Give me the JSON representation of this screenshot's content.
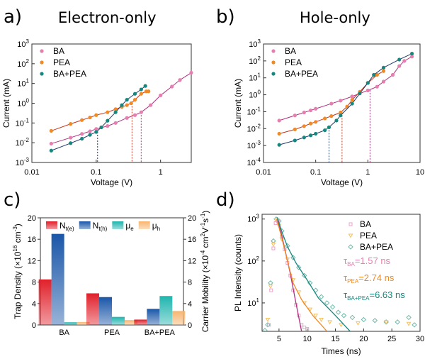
{
  "colors": {
    "BA": "#e57fb0",
    "PEA": "#f08a24",
    "BA+PEA": "#16877f",
    "fitBA": "#b0307f",
    "fitPEA": "#c8331c",
    "fitMix": "#1f3a6a",
    "Nte": "#e0202a",
    "Nth": "#1a56a8",
    "mue": "#1fb5ae",
    "muh": "#f7b570",
    "tauBA": "#e57fb0",
    "tauPEA": "#f08a24",
    "tauMix": "#16877f"
  },
  "chart_data": [
    {
      "panel": "a)",
      "title": "Electron-only",
      "type": "scatter",
      "xlabel": "Voltage (V)",
      "ylabel": "Current (mA)",
      "xscale": "log",
      "yscale": "log",
      "xlim": [
        0.01,
        3
      ],
      "ylim": [
        0.001,
        1000
      ],
      "xticks": [
        "0.01",
        "0.1",
        "1"
      ],
      "xtickvals": [
        0.01,
        0.1,
        1
      ],
      "yticks": [
        "10",
        "10",
        "10",
        "10",
        "10",
        "10",
        "10"
      ],
      "ytickexp": [
        "-3",
        "-2",
        "-1",
        "0",
        "1",
        "2",
        "3"
      ],
      "legend": "top-left",
      "series": [
        {
          "name": "BA",
          "points": [
            [
              0.02,
              0.009
            ],
            [
              0.04,
              0.018
            ],
            [
              0.06,
              0.028
            ],
            [
              0.08,
              0.038
            ],
            [
              0.1,
              0.05
            ],
            [
              0.15,
              0.07
            ],
            [
              0.2,
              0.1
            ],
            [
              0.3,
              0.18
            ],
            [
              0.4,
              0.25
            ],
            [
              0.5,
              0.35
            ],
            [
              0.7,
              0.8
            ],
            [
              1,
              2.5
            ],
            [
              1.5,
              7
            ],
            [
              2,
              15
            ],
            [
              3,
              35
            ]
          ]
        },
        {
          "name": "PEA",
          "points": [
            [
              0.02,
              0.04
            ],
            [
              0.04,
              0.09
            ],
            [
              0.06,
              0.14
            ],
            [
              0.08,
              0.19
            ],
            [
              0.1,
              0.25
            ],
            [
              0.15,
              0.35
            ],
            [
              0.2,
              0.5
            ],
            [
              0.25,
              0.65
            ],
            [
              0.3,
              0.8
            ],
            [
              0.35,
              1.0
            ],
            [
              0.4,
              1.5
            ],
            [
              0.5,
              3
            ],
            [
              0.6,
              4
            ],
            [
              0.65,
              4
            ]
          ]
        },
        {
          "name": "BA+PEA",
          "points": [
            [
              0.02,
              0.004
            ],
            [
              0.04,
              0.0095
            ],
            [
              0.06,
              0.016
            ],
            [
              0.08,
              0.025
            ],
            [
              0.1,
              0.035
            ],
            [
              0.12,
              0.06
            ],
            [
              0.15,
              0.13
            ],
            [
              0.2,
              0.35
            ],
            [
              0.25,
              0.8
            ],
            [
              0.3,
              1.5
            ],
            [
              0.4,
              3
            ],
            [
              0.5,
              5
            ],
            [
              0.58,
              7.5
            ]
          ]
        }
      ],
      "vlines": [
        {
          "x": 0.105,
          "color": "fitMix",
          "y": 0.035
        },
        {
          "x": 0.36,
          "color": "fitPEA",
          "y": 1.0
        },
        {
          "x": 0.5,
          "color": "fitBA",
          "y": 0.35
        }
      ]
    },
    {
      "panel": "b)",
      "title": "Hole-only",
      "type": "scatter",
      "xlabel": "Voltage (V)",
      "ylabel": "Current (mA)",
      "xscale": "log",
      "yscale": "log",
      "xlim": [
        0.01,
        10
      ],
      "ylim": [
        0.0001,
        1000
      ],
      "xticks": [
        "0.01",
        "0.1",
        "1",
        "10"
      ],
      "xtickvals": [
        0.01,
        0.1,
        1,
        10
      ],
      "yticks": [
        "10",
        "10",
        "10",
        "10",
        "10",
        "10",
        "10",
        "10"
      ],
      "ytickexp": [
        "-4",
        "-3",
        "-2",
        "-1",
        "0",
        "1",
        "2",
        "3"
      ],
      "legend": "top-left",
      "series": [
        {
          "name": "BA",
          "points": [
            [
              0.02,
              0.03
            ],
            [
              0.04,
              0.06
            ],
            [
              0.06,
              0.09
            ],
            [
              0.08,
              0.12
            ],
            [
              0.1,
              0.15
            ],
            [
              0.2,
              0.3
            ],
            [
              0.3,
              0.45
            ],
            [
              0.5,
              0.8
            ],
            [
              0.7,
              1.2
            ],
            [
              1,
              1.8
            ],
            [
              1.5,
              3
            ],
            [
              2,
              6
            ],
            [
              3,
              15
            ],
            [
              4,
              50
            ],
            [
              5,
              100
            ],
            [
              7,
              180
            ]
          ]
        },
        {
          "name": "PEA",
          "points": [
            [
              0.02,
              0.005
            ],
            [
              0.04,
              0.009
            ],
            [
              0.06,
              0.014
            ],
            [
              0.08,
              0.02
            ],
            [
              0.1,
              0.025
            ],
            [
              0.15,
              0.04
            ],
            [
              0.2,
              0.055
            ],
            [
              0.3,
              0.09
            ],
            [
              0.4,
              0.2
            ],
            [
              0.5,
              0.5
            ],
            [
              0.7,
              1.5
            ],
            [
              1,
              5
            ],
            [
              1.5,
              15
            ],
            [
              2,
              25
            ]
          ]
        },
        {
          "name": "BA+PEA",
          "points": [
            [
              0.02,
              0.0011
            ],
            [
              0.04,
              0.002
            ],
            [
              0.06,
              0.003
            ],
            [
              0.08,
              0.004
            ],
            [
              0.1,
              0.005
            ],
            [
              0.15,
              0.008
            ],
            [
              0.18,
              0.012
            ],
            [
              0.25,
              0.03
            ],
            [
              0.3,
              0.06
            ],
            [
              0.5,
              0.3
            ],
            [
              0.7,
              1.2
            ],
            [
              1,
              5
            ],
            [
              1.3,
              15
            ],
            [
              2,
              40
            ],
            [
              4,
              120
            ],
            [
              7,
              270
            ]
          ]
        }
      ],
      "vlines": [
        {
          "x": 0.18,
          "color": "fitMix",
          "y": 0.012
        },
        {
          "x": 0.32,
          "color": "fitPEA",
          "y": 0.09
        },
        {
          "x": 1.1,
          "color": "fitBA",
          "y": 1.9
        }
      ]
    },
    {
      "panel": "c)",
      "type": "bar",
      "categories": [
        "BA",
        "PEA",
        "BA+PEA"
      ],
      "ylabel_left": "Trap Density (×10",
      "ylabel_left_exp": "16",
      "ylabel_left_unit": " cm",
      "ylabel_left_unit_exp": "-3",
      "ylabel_left_close": ")",
      "ylabel_right": "Carrier Mobility (×10",
      "ylabel_right_exp": "-4",
      "ylabel_right_unit": " cm",
      "ylabel_right_unit_exp": "2",
      "ylabel_right_v": "V",
      "ylabel_right_v_exp": "-1",
      "ylabel_right_s": "s",
      "ylabel_right_s_exp": "-1",
      "ylabel_right_close": ")",
      "ylim": [
        0,
        20
      ],
      "yticks": [
        "0",
        "4",
        "8",
        "12",
        "16",
        "20"
      ],
      "legend": "top",
      "series": [
        {
          "name": "N",
          "sub": "t(e)",
          "color": "Nte",
          "values": [
            8.5,
            5.9,
            1.0
          ]
        },
        {
          "name": "N",
          "sub": "t(h)",
          "color": "Nth",
          "values": [
            17,
            5.2,
            3.0
          ]
        },
        {
          "name": "μ",
          "sub": "e",
          "color": "mue",
          "values": [
            0.5,
            1.5,
            5.4
          ]
        },
        {
          "name": "μ",
          "sub": "h",
          "color": "muh",
          "values": [
            0.55,
            0.9,
            2.6
          ]
        }
      ]
    },
    {
      "panel": "d)",
      "type": "scatter",
      "xlabel": "Times (ns)",
      "ylabel": "PL Intensity (counts)",
      "yscale": "log",
      "xlim": [
        2,
        30
      ],
      "ylim": [
        2.1,
        1300
      ],
      "xticks": [
        "5",
        "10",
        "15",
        "20",
        "25",
        "30"
      ],
      "xtickvals": [
        5,
        10,
        15,
        20,
        25,
        30
      ],
      "yticks": [
        "10",
        "10",
        "10"
      ],
      "ytickexp": [
        "1",
        "2",
        "3"
      ],
      "legend": "top-right",
      "series": [
        {
          "name": "BA",
          "marker": "square",
          "fit": [
            [
              4.7,
              1000
            ],
            [
              5.5,
              400
            ],
            [
              6,
              200
            ],
            [
              7,
              50
            ],
            [
              8,
              10
            ],
            [
              9,
              2.1
            ]
          ],
          "points": [
            [
              3.2,
              3
            ],
            [
              3.6,
              20
            ],
            [
              4,
              200
            ],
            [
              4.4,
              800
            ],
            [
              4.8,
              900
            ],
            [
              5.5,
              380
            ],
            [
              6,
              190
            ],
            [
              6.5,
              90
            ],
            [
              7,
              45
            ],
            [
              7.5,
              20
            ],
            [
              8,
              9
            ],
            [
              8.5,
              5
            ],
            [
              9,
              3
            ],
            [
              9.5,
              2.6
            ],
            [
              10,
              2.4
            ]
          ]
        },
        {
          "name": "PEA",
          "marker": "triangle-down",
          "fit": [
            [
              4.6,
              1000
            ],
            [
              5.5,
              350
            ],
            [
              6.5,
              100
            ],
            [
              7.5,
              30
            ],
            [
              9,
              12
            ],
            [
              11,
              5
            ],
            [
              13.5,
              2.1
            ]
          ],
          "points": [
            [
              3,
              4
            ],
            [
              3.5,
              25
            ],
            [
              4,
              250
            ],
            [
              4.5,
              950
            ],
            [
              5,
              700
            ],
            [
              5.5,
              330
            ],
            [
              6.5,
              110
            ],
            [
              7.5,
              35
            ],
            [
              8.5,
              18
            ],
            [
              9.5,
              10
            ],
            [
              10.5,
              7
            ],
            [
              11.5,
              5
            ],
            [
              12.5,
              4
            ],
            [
              14,
              3.5
            ],
            [
              16,
              3
            ],
            [
              19,
              3.3
            ],
            [
              24,
              3.5
            ],
            [
              28,
              3.2
            ]
          ]
        },
        {
          "name": "BA+PEA",
          "marker": "diamond",
          "fit": [
            [
              4.7,
              1100
            ],
            [
              5.5,
              500
            ],
            [
              6.5,
              220
            ],
            [
              8,
              90
            ],
            [
              10,
              35
            ],
            [
              12,
              13
            ],
            [
              15,
              5
            ],
            [
              17.6,
              2.1
            ]
          ],
          "points": [
            [
              2.5,
              2.2
            ],
            [
              3,
              3
            ],
            [
              3.5,
              30
            ],
            [
              4,
              300
            ],
            [
              4.5,
              1000
            ],
            [
              5,
              900
            ],
            [
              5.5,
              520
            ],
            [
              6.5,
              230
            ],
            [
              7.5,
              120
            ],
            [
              8.5,
              70
            ],
            [
              9.5,
              45
            ],
            [
              10.5,
              30
            ],
            [
              11.5,
              20
            ],
            [
              12.5,
              14
            ],
            [
              13.5,
              10
            ],
            [
              14.5,
              8
            ],
            [
              15.5,
              6
            ],
            [
              16.5,
              5
            ],
            [
              18,
              4.5
            ],
            [
              20,
              4
            ],
            [
              22,
              3.8
            ],
            [
              24,
              3.5
            ],
            [
              26,
              3.5
            ],
            [
              28,
              4.5
            ],
            [
              29,
              3
            ]
          ]
        }
      ],
      "annotations": [
        {
          "tau": "τ",
          "sub": "BA",
          "value": "=1.57 ns",
          "color": "tauBA"
        },
        {
          "tau": "τ",
          "sub": "PEA",
          "value": "=2.74 ns",
          "color": "tauPEA"
        },
        {
          "tau": "τ",
          "sub": "BA+PEA",
          "value": "=6.63 ns",
          "color": "tauMix"
        }
      ]
    }
  ]
}
